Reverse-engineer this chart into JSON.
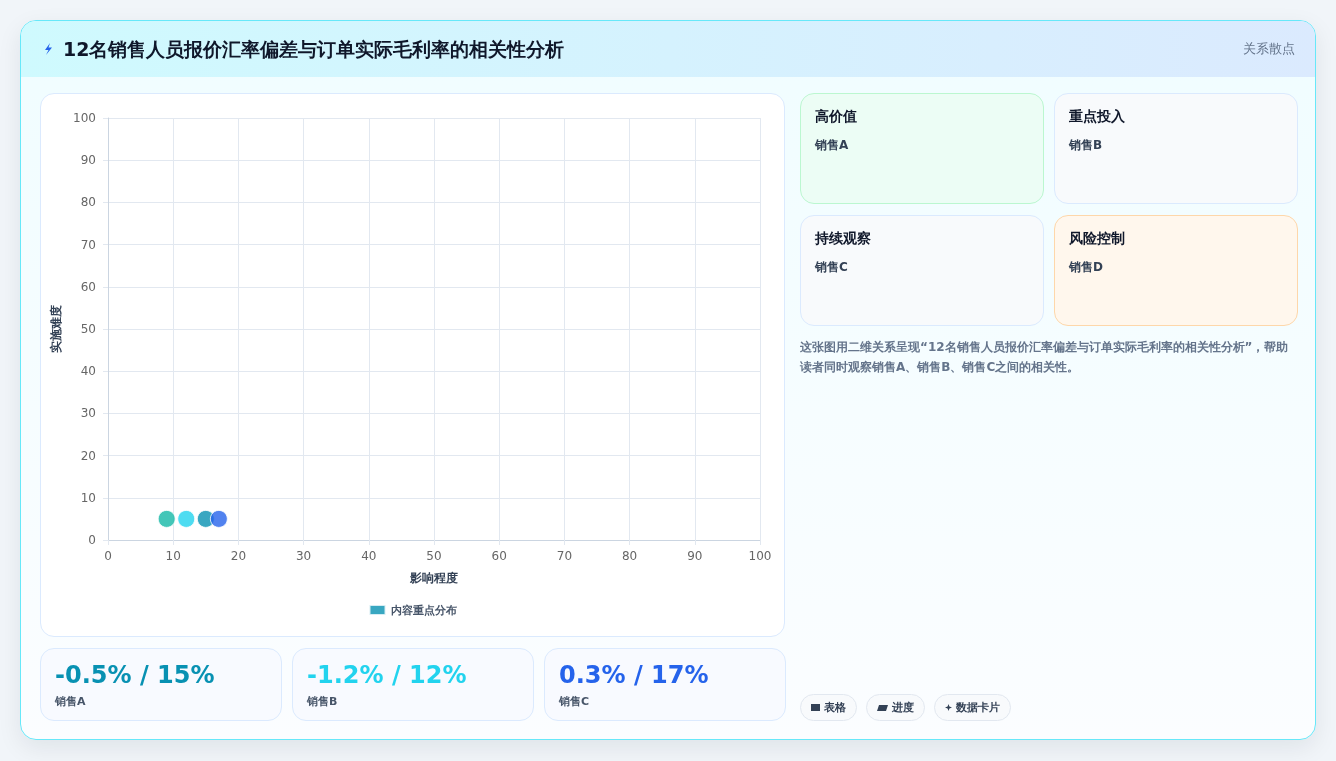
{
  "chart_data": {
    "type": "scatter",
    "title": "12名销售人员报价汇率偏差与订单实际毛利率的相关性分析",
    "subtitle": "关系散点",
    "xlabel": "影响程度",
    "ylabel": "实施难度",
    "series": [
      {
        "name": "内容重点分布",
        "color": "#0891b2",
        "colors": [
          "#14b8a6",
          "#22d3ee",
          "#0891b2",
          "#2563eb"
        ],
        "x": [
          9,
          12,
          15,
          17
        ],
        "values": [
          5,
          5,
          5,
          5
        ]
      }
    ],
    "xlim": [
      0,
      100
    ],
    "xticks": [
      0,
      10,
      20,
      30,
      40,
      50,
      60,
      70,
      80,
      90,
      100
    ],
    "ylim": [
      0,
      100
    ],
    "yticks": [
      0,
      10,
      20,
      30,
      40,
      50,
      60,
      70,
      80,
      90,
      100
    ],
    "grid": true,
    "legend": "bottom",
    "marker": "circle",
    "annotations": [
      "高价值",
      "销售A",
      "重点投入",
      "销售B",
      "持续观察",
      "销售C",
      "风险控制",
      "销售D",
      "这张图用二维关系呈现“12名销售人员报价汇率偏差与订单实际毛利率的相关性分析”，帮助读者同时观察销售A、销售B、销售C之间的相关性。",
      "-0.5% / 15%",
      "销售A",
      "-1.2% / 12%",
      "销售B",
      "0.3% / 17%",
      "销售C",
      "表格",
      "进度",
      "数据卡片"
    ]
  }
}
